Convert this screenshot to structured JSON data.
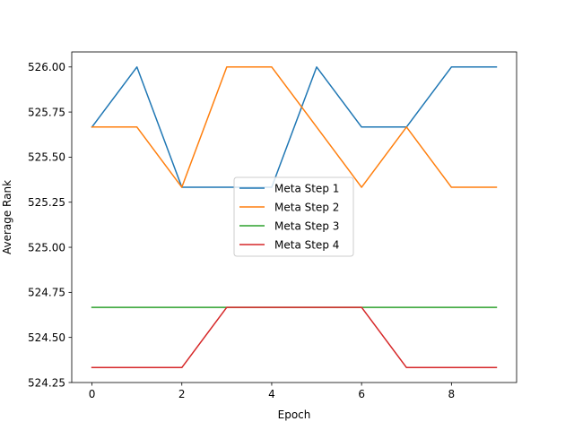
{
  "chart_data": {
    "type": "line",
    "title": "",
    "xlabel": "Epoch",
    "ylabel": "Average Rank",
    "xlim": [
      -0.45,
      9.45
    ],
    "ylim": [
      524.25,
      526.0833
    ],
    "xticks": [
      0,
      2,
      4,
      6,
      8
    ],
    "yticks": [
      524.25,
      524.5,
      524.75,
      525.0,
      525.25,
      525.5,
      525.75,
      526.0
    ],
    "ytick_labels": [
      "524.25",
      "524.50",
      "524.75",
      "525.00",
      "525.25",
      "525.50",
      "525.75",
      "526.00"
    ],
    "x": [
      0,
      1,
      2,
      3,
      4,
      5,
      6,
      7,
      8,
      9
    ],
    "legend": {
      "location": "center"
    },
    "grid": false,
    "series": [
      {
        "name": "Meta Step 1",
        "color": "#1f77b4",
        "values": [
          525.667,
          526.0,
          525.333,
          525.333,
          525.333,
          526.0,
          525.667,
          525.667,
          526.0,
          526.0
        ]
      },
      {
        "name": "Meta Step 2",
        "color": "#ff7f0e",
        "values": [
          525.667,
          525.667,
          525.333,
          526.0,
          526.0,
          525.667,
          525.333,
          525.667,
          525.333,
          525.333
        ]
      },
      {
        "name": "Meta Step 3",
        "color": "#2ca02c",
        "values": [
          524.667,
          524.667,
          524.667,
          524.667,
          524.667,
          524.667,
          524.667,
          524.667,
          524.667,
          524.667
        ]
      },
      {
        "name": "Meta Step 4",
        "color": "#d62728",
        "values": [
          524.333,
          524.333,
          524.333,
          524.667,
          524.667,
          524.667,
          524.667,
          524.333,
          524.333,
          524.333
        ]
      }
    ]
  }
}
